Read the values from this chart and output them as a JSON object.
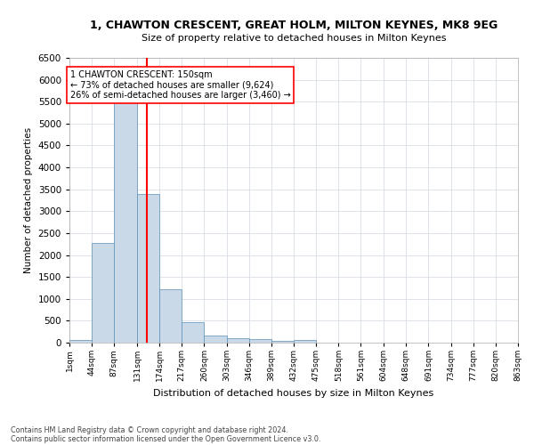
{
  "title": "1, CHAWTON CRESCENT, GREAT HOLM, MILTON KEYNES, MK8 9EG",
  "subtitle": "Size of property relative to detached houses in Milton Keynes",
  "xlabel": "Distribution of detached houses by size in Milton Keynes",
  "ylabel": "Number of detached properties",
  "footer_line1": "Contains HM Land Registry data © Crown copyright and database right 2024.",
  "footer_line2": "Contains public sector information licensed under the Open Government Licence v3.0.",
  "annotation_line1": "1 CHAWTON CRESCENT: 150sqm",
  "annotation_line2": "← 73% of detached houses are smaller (9,624)",
  "annotation_line3": "26% of semi-detached houses are larger (3,460) →",
  "vline_x": 150,
  "bar_color": "#c9d9e8",
  "bar_edge_color": "#5a90b8",
  "vline_color": "red",
  "background_color": "#ffffff",
  "grid_color": "#d0d8e0",
  "bins": [
    1,
    44,
    87,
    131,
    174,
    217,
    260,
    303,
    346,
    389,
    432,
    475,
    518,
    561,
    604,
    648,
    691,
    734,
    777,
    820,
    863
  ],
  "bin_labels": [
    "1sqm",
    "44sqm",
    "87sqm",
    "131sqm",
    "174sqm",
    "217sqm",
    "260sqm",
    "303sqm",
    "346sqm",
    "389sqm",
    "432sqm",
    "475sqm",
    "518sqm",
    "561sqm",
    "604sqm",
    "648sqm",
    "691sqm",
    "734sqm",
    "777sqm",
    "820sqm",
    "863sqm"
  ],
  "counts": [
    70,
    2280,
    5480,
    3400,
    1220,
    460,
    170,
    110,
    85,
    50,
    60,
    0,
    0,
    0,
    0,
    0,
    0,
    0,
    0,
    0
  ],
  "ylim": [
    0,
    6500
  ],
  "yticks": [
    0,
    500,
    1000,
    1500,
    2000,
    2500,
    3000,
    3500,
    4000,
    4500,
    5000,
    5500,
    6000,
    6500
  ]
}
